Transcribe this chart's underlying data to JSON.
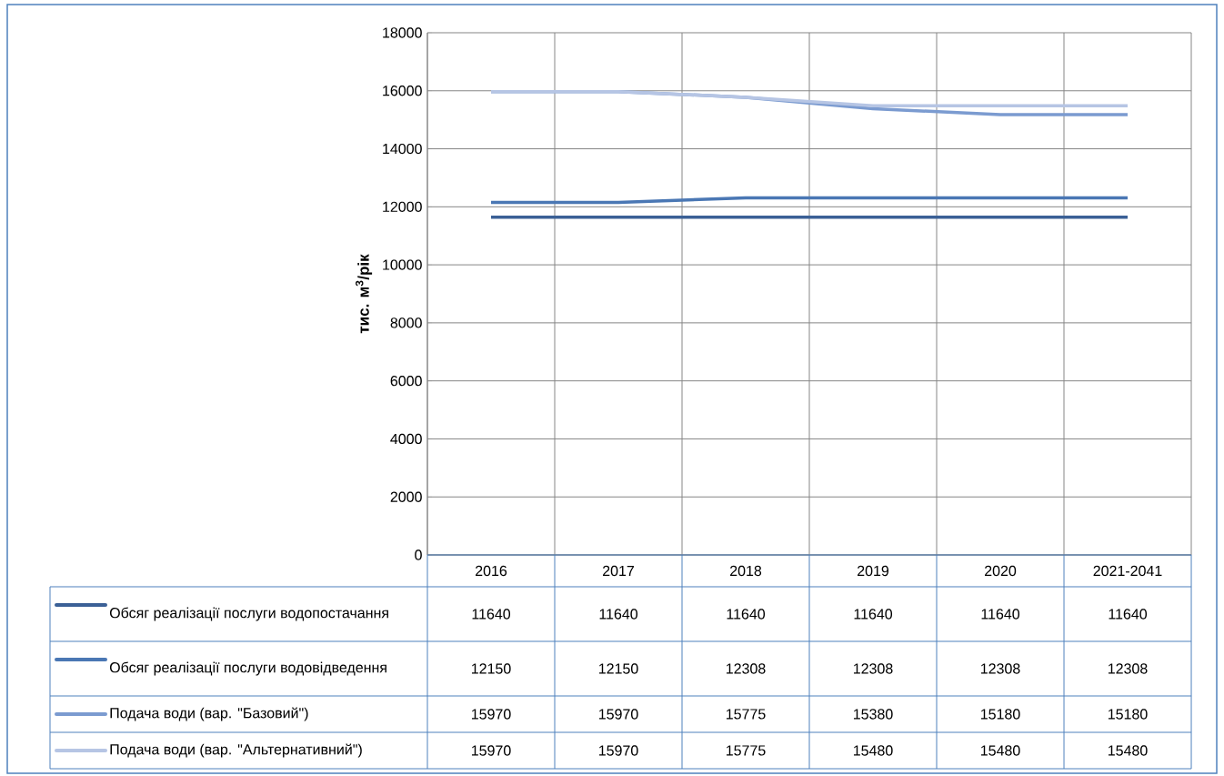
{
  "chart_data": {
    "type": "line",
    "ylabel": "тис. м$^{3}$/рік",
    "categories": [
      "2016",
      "2017",
      "2018",
      "2019",
      "2020",
      "2021-2041"
    ],
    "series": [
      {
        "name": "Обсяг реалізації послуги водопостачання",
        "color": "#3b6096",
        "values": [
          11640,
          11640,
          11640,
          11640,
          11640,
          11640
        ]
      },
      {
        "name": "Обсяг реалізації послуги водовідведення",
        "color": "#4a77b4",
        "values": [
          12150,
          12150,
          12308,
          12308,
          12308,
          12308
        ]
      },
      {
        "name": "Подача води (вар. \"Базовий\")",
        "color": "#7b9bd0",
        "values": [
          15970,
          15970,
          15775,
          15380,
          15180,
          15180
        ]
      },
      {
        "name": "Подача води (вар. \"Альтернативний\")",
        "color": "#b6c5e4",
        "values": [
          15970,
          15970,
          15775,
          15480,
          15480,
          15480
        ]
      }
    ],
    "ylim": [
      0,
      18000
    ],
    "yticks": [
      0,
      2000,
      4000,
      6000,
      8000,
      10000,
      12000,
      14000,
      16000,
      18000
    ],
    "grid": true,
    "legend": "bottom",
    "data_labels": true,
    "marker": "none",
    "line_style": "solid"
  }
}
